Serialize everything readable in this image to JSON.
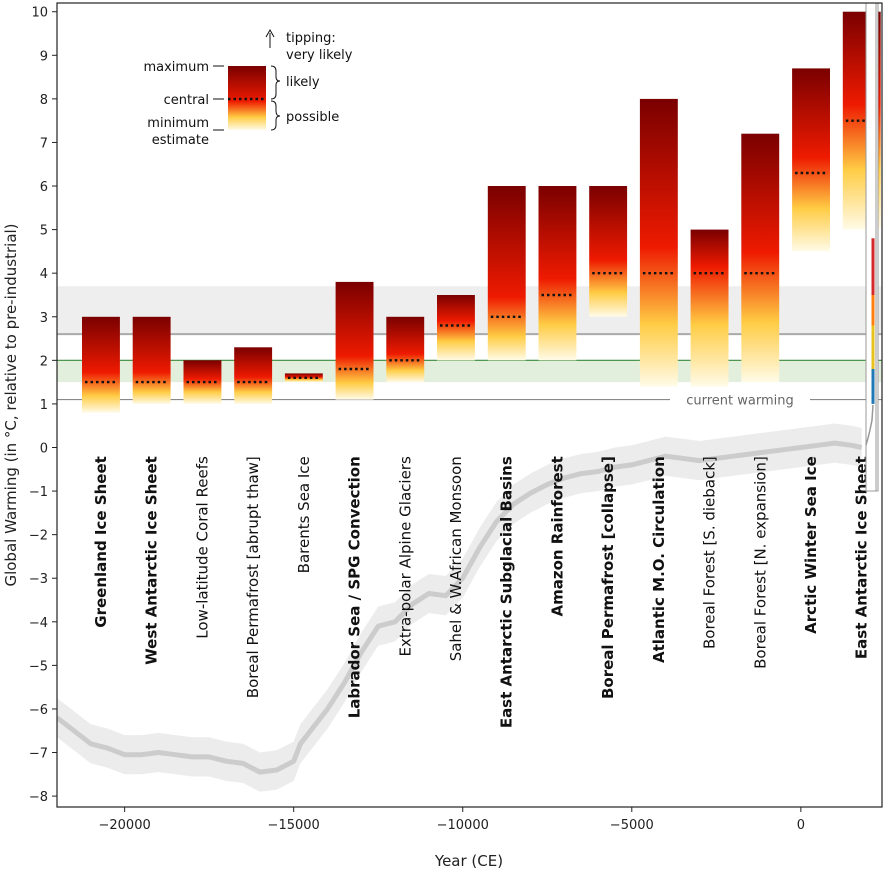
{
  "chart_data": {
    "type": "bar",
    "xlabel": "Year (CE)",
    "ylabel": "Global Warming (in °C, relative to pre-industrial)",
    "xlim": [
      -22000,
      2400
    ],
    "ylim": [
      -8.25,
      10.2
    ],
    "xticks": [
      -20000,
      -15000,
      -10000,
      -5000,
      0
    ],
    "xtick_labels": [
      "−20000",
      "−15000",
      "−10000",
      "−5000",
      "0"
    ],
    "yticks": [
      -8,
      -7,
      -6,
      -5,
      -4,
      -3,
      -2,
      -1,
      0,
      1,
      2,
      3,
      4,
      5,
      6,
      7,
      8,
      9,
      10
    ],
    "ytick_labels": [
      "−8",
      "−7",
      "−6",
      "−5",
      "−4",
      "−3",
      "−2",
      "−1",
      "0",
      "1",
      "2",
      "3",
      "4",
      "5",
      "6",
      "7",
      "8",
      "9",
      "10"
    ],
    "grid": false,
    "bar_half_width_years": 560,
    "elements": [
      {
        "name": "Greenland Ice Sheet",
        "x": -20700,
        "min": 0.8,
        "central": 1.5,
        "max": 3.0,
        "bold": true
      },
      {
        "name": "West Antarctic Ice Sheet",
        "x": -19200,
        "min": 1.0,
        "central": 1.5,
        "max": 3.0,
        "bold": true
      },
      {
        "name": "Low-latitude Coral Reefs",
        "x": -17700,
        "min": 1.0,
        "central": 1.5,
        "max": 2.0,
        "bold": false
      },
      {
        "name": "Boreal Permafrost [abrupt thaw]",
        "x": -16200,
        "min": 1.0,
        "central": 1.5,
        "max": 2.3,
        "bold": false
      },
      {
        "name": "Barents Sea Ice",
        "x": -14700,
        "min": 1.5,
        "central": 1.6,
        "max": 1.7,
        "bold": false
      },
      {
        "name": "Labrador Sea / SPG Convection",
        "x": -13200,
        "min": 1.1,
        "central": 1.8,
        "max": 3.8,
        "bold": true
      },
      {
        "name": "Extra-polar Alpine Glaciers",
        "x": -11700,
        "min": 1.5,
        "central": 2.0,
        "max": 3.0,
        "bold": false
      },
      {
        "name": "Sahel & W.African Monsoon",
        "x": -10200,
        "min": 2.0,
        "central": 2.8,
        "max": 3.5,
        "bold": false
      },
      {
        "name": "East Antarctic Subglacial Basins",
        "x": -8700,
        "min": 2.0,
        "central": 3.0,
        "max": 6.0,
        "bold": true
      },
      {
        "name": "Amazon Rainforest",
        "x": -7200,
        "min": 2.0,
        "central": 3.5,
        "max": 6.0,
        "bold": true
      },
      {
        "name": "Boreal Permafrost [collapse]",
        "x": -5700,
        "min": 3.0,
        "central": 4.0,
        "max": 6.0,
        "bold": true
      },
      {
        "name": "Atlantic M.O. Circulation",
        "x": -4200,
        "min": 1.4,
        "central": 4.0,
        "max": 8.0,
        "bold": true
      },
      {
        "name": "Boreal Forest [S. dieback]",
        "x": -2700,
        "min": 1.4,
        "central": 4.0,
        "max": 5.0,
        "bold": false
      },
      {
        "name": "Boreal Forest [N. expansion]",
        "x": -1200,
        "min": 1.5,
        "central": 4.0,
        "max": 7.2,
        "bold": false
      },
      {
        "name": "Arctic Winter Sea Ice",
        "x": 300,
        "min": 4.5,
        "central": 6.3,
        "max": 8.7,
        "bold": true
      },
      {
        "name": "East Antarctic Ice Sheet",
        "x": 1800,
        "min": 5.0,
        "central": 7.5,
        "max": 10.0,
        "bold": true
      }
    ],
    "reference_lines": [
      {
        "value": 1.1,
        "label": "current warming",
        "color": "#888888"
      },
      {
        "value": 2.6,
        "color": "#aaaaaa"
      },
      {
        "value": 2.0,
        "color": "#3a8a3a"
      }
    ],
    "bands": [
      {
        "from": 2.6,
        "to": 3.7,
        "color": "#eeeeee"
      },
      {
        "from": 1.5,
        "to": 2.0,
        "color": "#e3efdd"
      }
    ],
    "temperature_history": {
      "x": [
        -22000,
        -21500,
        -21000,
        -20500,
        -20000,
        -19500,
        -19000,
        -18500,
        -18000,
        -17500,
        -17000,
        -16500,
        -16000,
        -15500,
        -15000,
        -14800,
        -14500,
        -14000,
        -13500,
        -13000,
        -12500,
        -12000,
        -11500,
        -11000,
        -10500,
        -10000,
        -9500,
        -9000,
        -8500,
        -8000,
        -7500,
        -7000,
        -6500,
        -6000,
        -5500,
        -5000,
        -4500,
        -4000,
        -3500,
        -3000,
        -2500,
        -2000,
        -1500,
        -1000,
        -500,
        0,
        500,
        1000,
        1500,
        1800
      ],
      "y": [
        -6.2,
        -6.5,
        -6.8,
        -6.9,
        -7.05,
        -7.05,
        -7.0,
        -7.05,
        -7.1,
        -7.1,
        -7.2,
        -7.25,
        -7.45,
        -7.4,
        -7.2,
        -6.8,
        -6.5,
        -6.0,
        -5.4,
        -4.7,
        -4.1,
        -4.0,
        -3.6,
        -3.35,
        -3.4,
        -3.0,
        -2.3,
        -1.7,
        -1.3,
        -1.05,
        -0.85,
        -0.7,
        -0.6,
        -0.55,
        -0.45,
        -0.4,
        -0.3,
        -0.2,
        -0.25,
        -0.3,
        -0.25,
        -0.2,
        -0.15,
        -0.1,
        -0.05,
        0.0,
        0.05,
        0.1,
        0.05,
        0.0
      ],
      "band_halfwidth": 0.45,
      "color": "#cccccc"
    },
    "inset": {
      "series": [
        {
          "from": 1.0,
          "to": 1.8,
          "color": "#1f77b4"
        },
        {
          "from": 1.8,
          "to": 2.8,
          "color": "#e8c21c"
        },
        {
          "from": 2.8,
          "to": 3.5,
          "color": "#ff7f0e"
        },
        {
          "from": 3.5,
          "to": 4.8,
          "color": "#d62728"
        }
      ]
    },
    "legend": {
      "maximum_label": "maximum",
      "central_label": "central",
      "minimum_label": "minimum",
      "estimate_label": "estimate",
      "tipping_label": "tipping:",
      "very_likely_label": "very likely",
      "likely_label": "likely",
      "possible_label": "possible"
    },
    "colors": {
      "bar_top": "#7a0000",
      "bar_mid": "#ee1a00",
      "bar_low": "#ffcc44",
      "bar_min": "#fffbe8",
      "central_dots": "#111111"
    }
  }
}
